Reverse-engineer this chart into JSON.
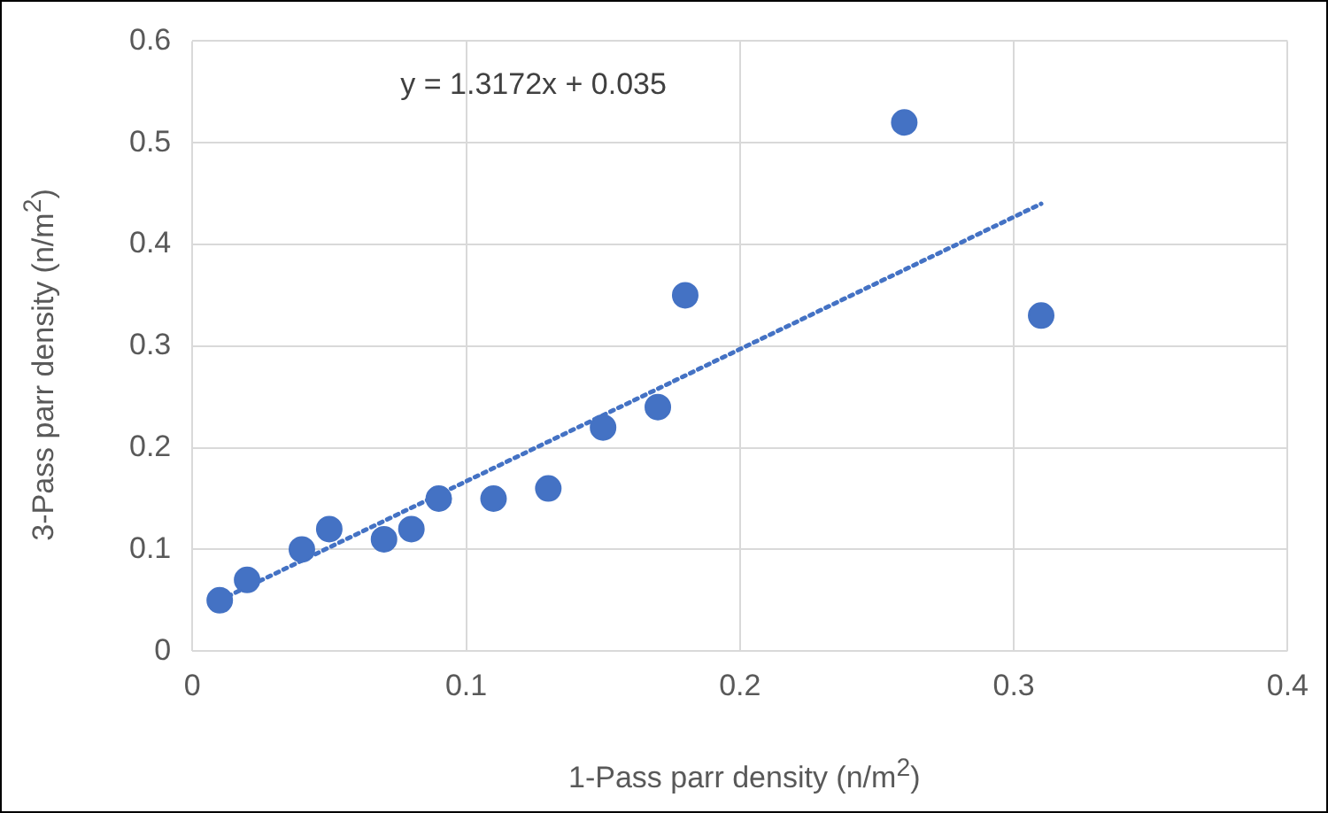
{
  "chart_data": {
    "type": "scatter",
    "xlabel": "1-Pass parr density (n/m$^{2}$)",
    "ylabel": "3-Pass parr density (n/m$^{2}$)",
    "xlim": [
      0,
      0.4
    ],
    "xticks": [
      0,
      0.1,
      0.2,
      0.3,
      0.4
    ],
    "ylim": [
      0,
      0.6
    ],
    "yticks": [
      0,
      0.1,
      0.2,
      0.3,
      0.4,
      0.5,
      0.6
    ],
    "grid": true,
    "marker": "circle",
    "annotations": [
      "y = 1.3172x + 0.035"
    ],
    "series": [
      {
        "color": "#4472c4",
        "x": [
          0.01,
          0.02,
          0.04,
          0.05,
          0.07,
          0.08,
          0.09,
          0.11,
          0.13,
          0.15,
          0.17,
          0.18,
          0.26,
          0.31
        ],
        "values": [
          0.05,
          0.07,
          0.1,
          0.12,
          0.11,
          0.12,
          0.15,
          0.15,
          0.16,
          0.22,
          0.24,
          0.35,
          0.52,
          0.33
        ]
      },
      {
        "type": "line",
        "color": "#4472c4",
        "line_style": "dotted",
        "marker": "none",
        "x": [
          0.01,
          0.31
        ],
        "values": [
          0.05,
          0.44
        ]
      }
    ]
  }
}
